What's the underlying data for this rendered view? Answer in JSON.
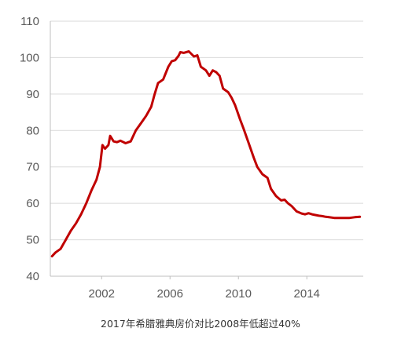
{
  "caption": "2017年希腊雅典房价对比2008年低超过40%",
  "chart_data": {
    "type": "line",
    "title": "",
    "xlabel": "",
    "ylabel": "",
    "xlim": [
      1999.0,
      2017.3
    ],
    "ylim": [
      40,
      110
    ],
    "x_ticks": [
      2002,
      2006,
      2010,
      2014
    ],
    "y_ticks": [
      40,
      50,
      60,
      70,
      80,
      90,
      100,
      110
    ],
    "grid": "horizontal",
    "legend": "none",
    "line_color": "#c00000",
    "series": [
      {
        "x": [
          1999.1,
          1999.3,
          1999.6,
          1999.9,
          2000.2,
          2000.5,
          2000.8,
          2001.1,
          2001.4,
          2001.7,
          2001.9,
          2002.05,
          2002.2,
          2002.4,
          2002.5,
          2002.7,
          2002.9,
          2003.1,
          2003.4,
          2003.7,
          2004.0,
          2004.3,
          2004.6,
          2004.9,
          2005.1,
          2005.3,
          2005.6,
          2005.9,
          2006.1,
          2006.3,
          2006.5,
          2006.6,
          2006.8,
          2007.1,
          2007.4,
          2007.6,
          2007.8,
          2008.1,
          2008.3,
          2008.5,
          2008.7,
          2008.9,
          2009.1,
          2009.4,
          2009.6,
          2009.8,
          2010.1,
          2010.3,
          2010.6,
          2010.9,
          2011.1,
          2011.4,
          2011.7,
          2011.9,
          2012.2,
          2012.5,
          2012.7,
          2012.9,
          2013.1,
          2013.4,
          2013.7,
          2013.9,
          2014.1,
          2014.3,
          2014.5,
          2014.7,
          2014.9,
          2015.1,
          2015.3,
          2015.6,
          2015.9,
          2016.2,
          2016.5,
          2016.8,
          2017.1
        ],
        "y": [
          45.5,
          46.5,
          47.5,
          50.0,
          52.5,
          54.5,
          57.0,
          60.0,
          63.5,
          66.5,
          70.0,
          76.0,
          75.0,
          76.0,
          78.5,
          77.0,
          76.8,
          77.2,
          76.5,
          77.0,
          80.0,
          82.0,
          84.0,
          86.5,
          90.0,
          93.0,
          94.0,
          97.5,
          99.0,
          99.3,
          100.5,
          101.5,
          101.3,
          101.7,
          100.3,
          100.6,
          97.5,
          96.5,
          95.0,
          96.5,
          96.0,
          95.0,
          91.5,
          90.5,
          89.0,
          87.0,
          83.0,
          80.5,
          76.5,
          72.5,
          70.0,
          68.0,
          67.0,
          64.0,
          62.0,
          60.8,
          61.0,
          60.0,
          59.3,
          57.8,
          57.2,
          57.0,
          57.3,
          57.0,
          56.8,
          56.6,
          56.5,
          56.3,
          56.2,
          56.0,
          56.0,
          56.0,
          56.0,
          56.2,
          56.3
        ]
      }
    ]
  }
}
